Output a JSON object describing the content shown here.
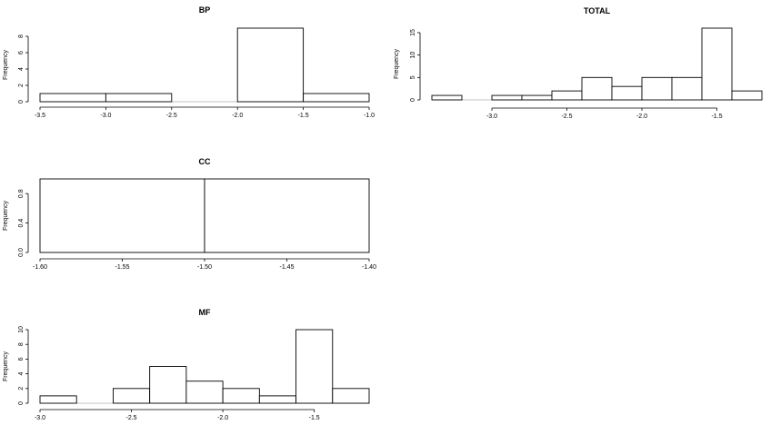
{
  "chart_data": [
    {
      "type": "bar",
      "title": "BP",
      "ylabel": "Frequency",
      "bins": [
        [
          -3.5,
          -3.0
        ],
        [
          -3.0,
          -2.5
        ],
        [
          -2.5,
          -2.0
        ],
        [
          -2.0,
          -1.5
        ],
        [
          -1.5,
          -1.0
        ]
      ],
      "values": [
        1,
        1,
        0,
        9,
        1
      ],
      "xlim": [
        -3.5,
        -1.0
      ],
      "ylim": [
        0,
        9
      ],
      "xticks": [
        -3.5,
        -3.0,
        -2.5,
        -2.0,
        -1.5,
        -1.0
      ],
      "xtick_labels": [
        "-3.5",
        "-3.0",
        "-2.5",
        "-2.0",
        "-1.5",
        "-1.0"
      ],
      "yticks": [
        0,
        2,
        4,
        6,
        8
      ],
      "ytick_labels": [
        "0",
        "2",
        "4",
        "6",
        "8"
      ]
    },
    {
      "type": "bar",
      "title": "TOTAL",
      "ylabel": "Frequency",
      "bins": [
        [
          -3.4,
          -3.2
        ],
        [
          -3.2,
          -3.0
        ],
        [
          -3.0,
          -2.8
        ],
        [
          -2.8,
          -2.6
        ],
        [
          -2.6,
          -2.4
        ],
        [
          -2.4,
          -2.2
        ],
        [
          -2.2,
          -2.0
        ],
        [
          -2.0,
          -1.8
        ],
        [
          -1.8,
          -1.6
        ],
        [
          -1.6,
          -1.4
        ],
        [
          -1.4,
          -1.2
        ]
      ],
      "values": [
        1,
        0,
        1,
        1,
        2,
        5,
        3,
        5,
        5,
        16,
        2
      ],
      "xlim": [
        -3.4,
        -1.2
      ],
      "ylim": [
        0,
        16
      ],
      "xticks": [
        -3.0,
        -2.5,
        -2.0,
        -1.5
      ],
      "xtick_labels": [
        "-3.0",
        "-2.5",
        "-2.0",
        "-1.5"
      ],
      "yticks": [
        0,
        5,
        10,
        15
      ],
      "ytick_labels": [
        "0",
        "5",
        "10",
        "15"
      ]
    },
    {
      "type": "bar",
      "title": "CC",
      "ylabel": "Frequency",
      "bins": [
        [
          -1.6,
          -1.5
        ],
        [
          -1.5,
          -1.4
        ]
      ],
      "values": [
        1,
        1
      ],
      "xlim": [
        -1.6,
        -1.4
      ],
      "ylim": [
        0,
        1
      ],
      "xticks": [
        -1.6,
        -1.55,
        -1.5,
        -1.45,
        -1.4
      ],
      "xtick_labels": [
        "-1.60",
        "-1.55",
        "-1.50",
        "-1.45",
        "-1.40"
      ],
      "yticks": [
        0,
        0.4,
        0.8
      ],
      "ytick_labels": [
        "0.0",
        "0.4",
        "0.8"
      ]
    },
    {
      "type": "bar",
      "title": "MF",
      "ylabel": "Frequency",
      "bins": [
        [
          -3.0,
          -2.8
        ],
        [
          -2.8,
          -2.6
        ],
        [
          -2.6,
          -2.4
        ],
        [
          -2.4,
          -2.2
        ],
        [
          -2.2,
          -2.0
        ],
        [
          -2.0,
          -1.8
        ],
        [
          -1.8,
          -1.6
        ],
        [
          -1.6,
          -1.4
        ],
        [
          -1.4,
          -1.2
        ]
      ],
      "values": [
        1,
        0,
        2,
        5,
        3,
        2,
        1,
        10,
        2
      ],
      "xlim": [
        -3.0,
        -1.2
      ],
      "ylim": [
        0,
        10
      ],
      "xticks": [
        -3.0,
        -2.5,
        -2.0,
        -1.5
      ],
      "xtick_labels": [
        "-3.0",
        "-2.5",
        "-2.0",
        "-1.5"
      ],
      "yticks": [
        0,
        2,
        4,
        6,
        8,
        10
      ],
      "ytick_labels": [
        "0",
        "2",
        "4",
        "6",
        "8",
        "10"
      ]
    }
  ]
}
